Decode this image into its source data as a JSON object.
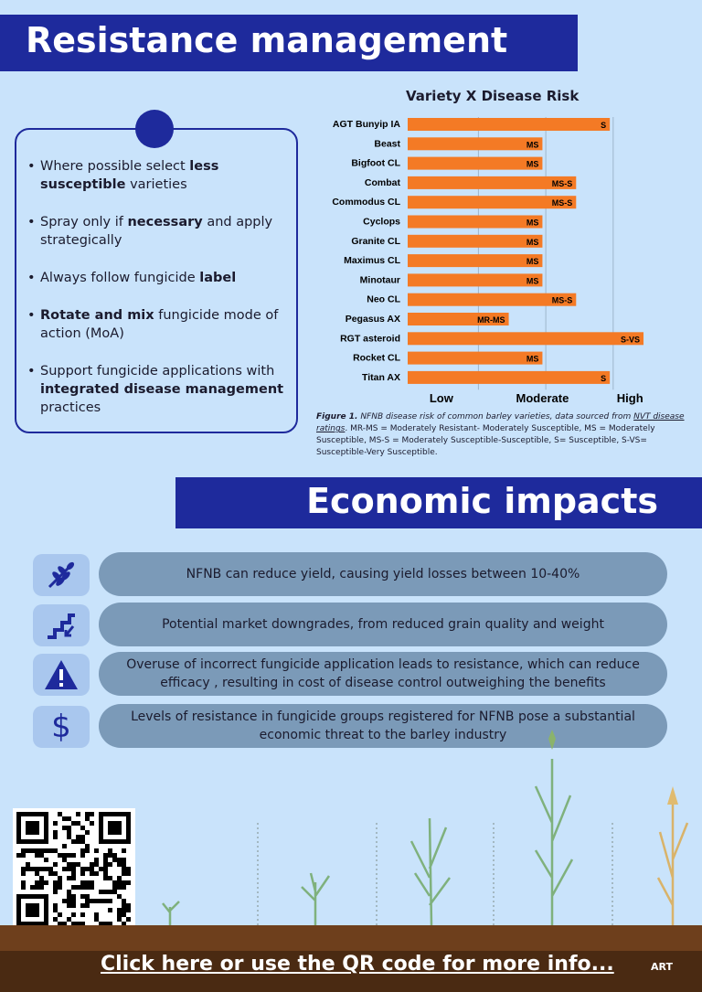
{
  "header": {
    "title": "Resistance management"
  },
  "bullets": {
    "items": [
      {
        "pre": "Where possible select ",
        "bold": "less susceptible",
        "post": " varieties"
      },
      {
        "pre": "Spray only if ",
        "bold": "necessary",
        "post": " and apply strategically"
      },
      {
        "pre": "Always follow fungicide ",
        "bold": "label",
        "post": ""
      },
      {
        "pre": "",
        "bold": "Rotate and mix",
        "post": " fungicide mode of action (MoA)"
      },
      {
        "pre": "Support fungicide applications with ",
        "bold": "integrated disease management",
        "post": " practices"
      }
    ]
  },
  "chart_data": {
    "type": "bar",
    "title": "Variety X Disease Risk",
    "orientation": "horizontal",
    "categories": [
      "AGT Bunyip IA",
      "Beast",
      "Bigfoot CL",
      "Combat",
      "Commodus CL",
      "Cyclops",
      "Granite CL",
      "Maximus CL",
      "Minotaur",
      "Neo CL",
      "Pegasus AX",
      "RGT asteroid",
      "Rocket CL",
      "Titan AX"
    ],
    "values": [
      6,
      4,
      4,
      5,
      5,
      4,
      4,
      4,
      4,
      5,
      3,
      7,
      4,
      6
    ],
    "labels": [
      "S",
      "MS",
      "MS",
      "MS-S",
      "MS-S",
      "MS",
      "MS",
      "MS",
      "MS",
      "MS-S",
      "MR-MS",
      "S-VS",
      "MS",
      "S"
    ],
    "xlim": [
      0,
      7
    ],
    "x_axis_labels": [
      "Low",
      "Moderate",
      "High"
    ],
    "bar_color": "#f47a25",
    "grid": true
  },
  "caption": {
    "fig_label": "Figure 1.",
    "italic_text": " NFNB disease risk of common barley varieties, data sourced from ",
    "link_text": "NVT disease ratings",
    "body": ". MR-MS = Moderately Resistant- Moderately Susceptible, MS = Moderately Susceptible, MS-S = Moderately Susceptible-Susceptible, S= Susceptible, S-VS= Susceptible-Very Susceptible."
  },
  "economic": {
    "title": "Economic impacts",
    "rows": [
      {
        "icon": "wheat-icon",
        "text": "NFNB can reduce yield, causing yield losses between 10-40%"
      },
      {
        "icon": "downgrade-stairs-icon",
        "text": "Potential market downgrades, from reduced grain quality and weight"
      },
      {
        "icon": "warning-icon",
        "text": "Overuse of incorrect fungicide application leads to resistance, which can reduce efficacy , resulting in cost of disease control outweighing the benefits"
      },
      {
        "icon": "dollar-icon",
        "text": "Levels of resistance in fungicide groups registered for NFNB pose a substantial economic threat to the barley industry"
      }
    ]
  },
  "footer": {
    "link_text": "Click here or use the QR code for more info...",
    "logo_text": "ART"
  },
  "colors": {
    "navy": "#1e2a9c",
    "background": "#c9e3fb",
    "pill": "#7b9ab8",
    "bar": "#f47a25"
  }
}
